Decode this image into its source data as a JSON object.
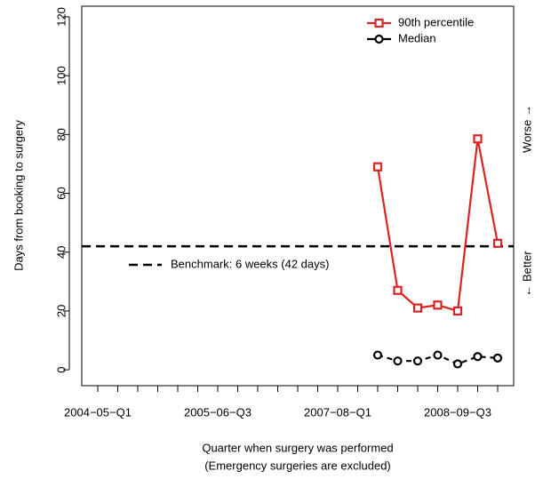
{
  "chart_data": {
    "type": "line",
    "y_label": "Days from booking to surgery",
    "x_label": "Quarter when surgery was performed",
    "x_sublabel": "(Emergency surgeries are excluded)",
    "right_label_top": "Worse →",
    "right_label_bottom": "← Better",
    "categories": [
      "2004−05−Q1",
      null,
      null,
      null,
      null,
      null,
      "2005−06−Q3",
      null,
      null,
      null,
      null,
      null,
      "2007−08−Q1",
      null,
      null,
      null,
      null,
      null,
      "2008−09−Q3",
      null,
      null
    ],
    "series": [
      {
        "name": "90th percentile",
        "color": "#dd2222",
        "marker": "square",
        "dash": false,
        "values": [
          null,
          null,
          null,
          null,
          null,
          null,
          null,
          null,
          null,
          null,
          null,
          null,
          null,
          null,
          69,
          27,
          21,
          22,
          20,
          78.5,
          43
        ]
      },
      {
        "name": "Median",
        "color": "#000000",
        "marker": "circle",
        "dash": true,
        "values": [
          null,
          null,
          null,
          null,
          null,
          null,
          null,
          null,
          null,
          null,
          null,
          null,
          null,
          null,
          5,
          3,
          3,
          5,
          2,
          4.5,
          4
        ]
      }
    ],
    "benchmark": {
      "label": "Benchmark: 6 weeks (42 days)",
      "value": 42,
      "color": "#000000"
    },
    "ylim": [
      -5.4,
      123.6
    ],
    "yticks": [
      0,
      20,
      40,
      60,
      80,
      100,
      120
    ],
    "legend": "top-right"
  }
}
